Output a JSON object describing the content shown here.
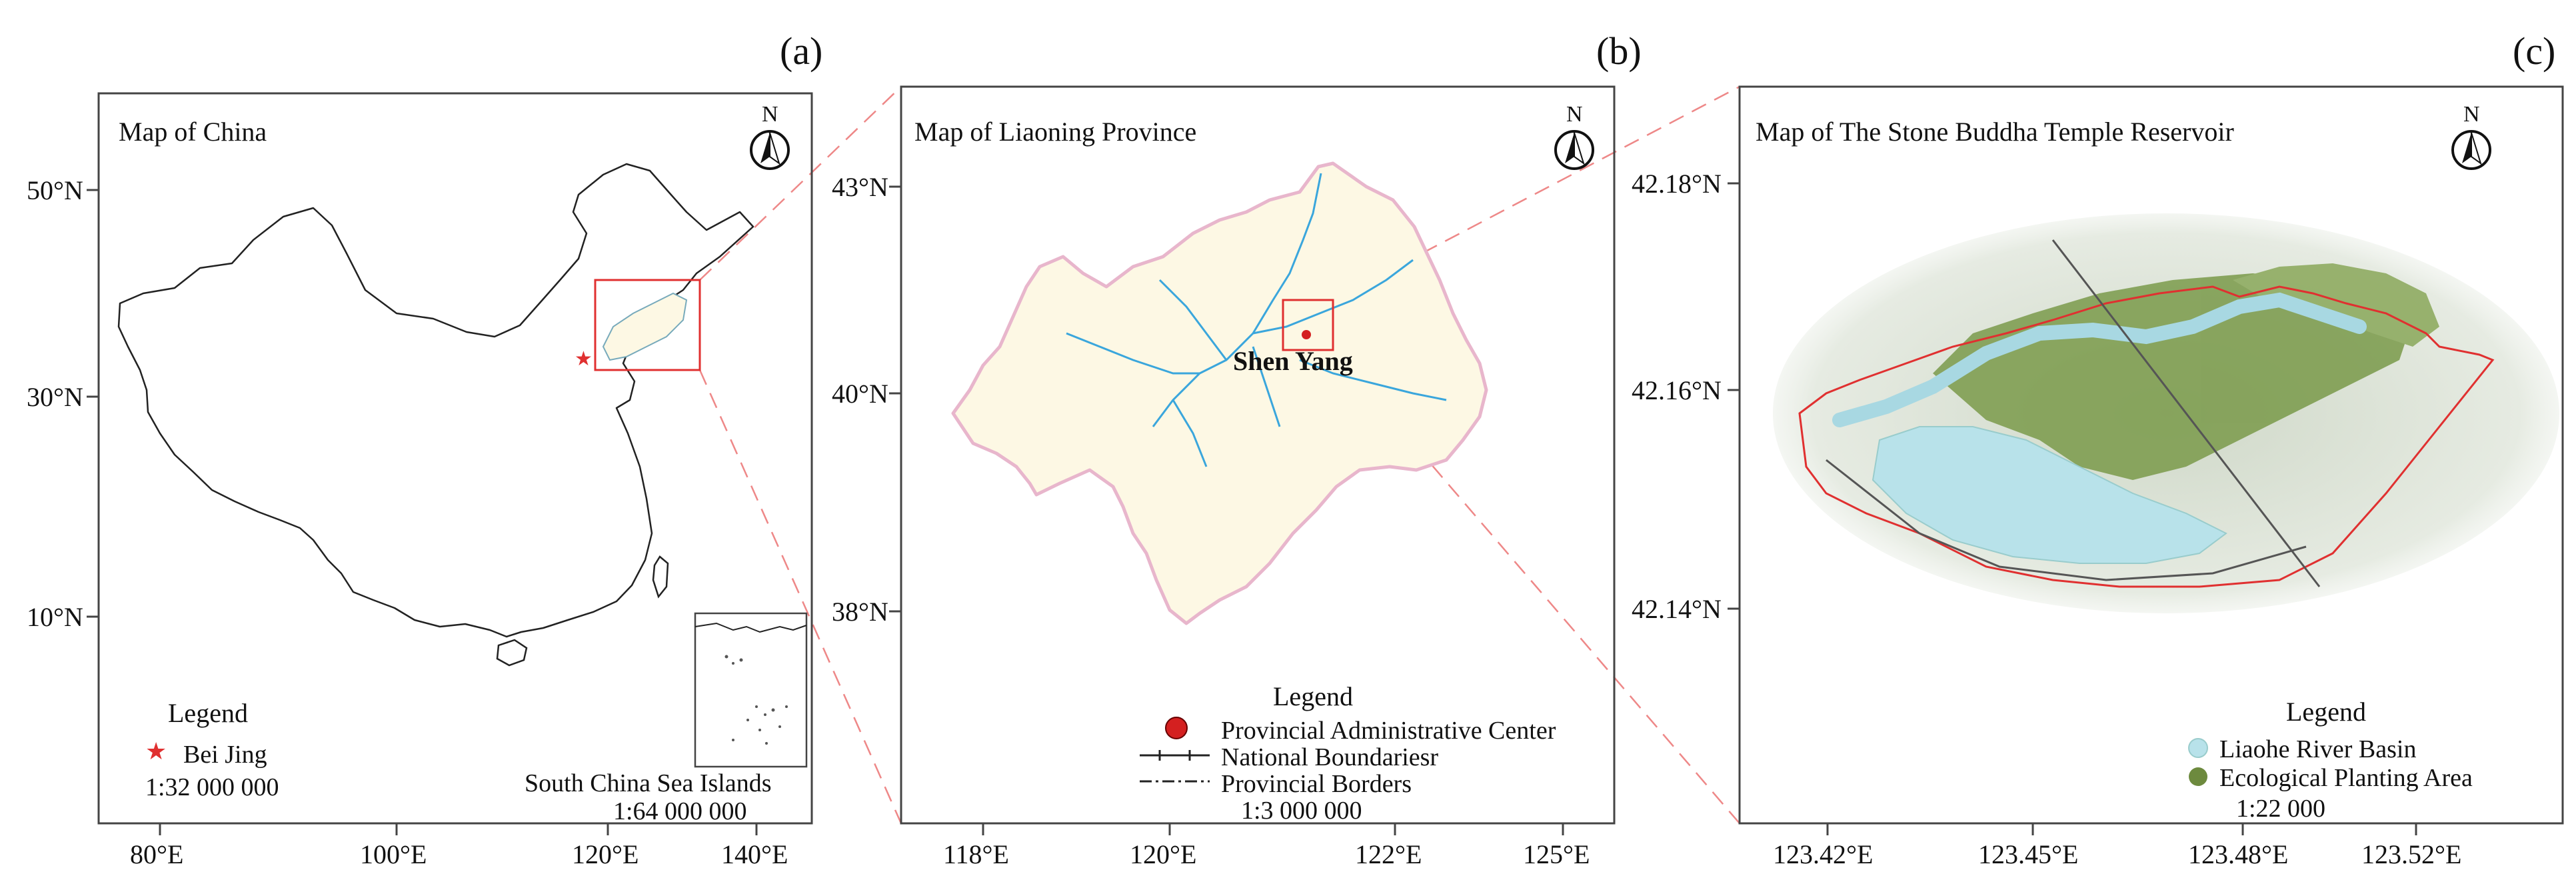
{
  "colors": {
    "frame": "#444444",
    "outline": "#222222",
    "highlight": "#e03030",
    "province_fill": "#fdf8e4",
    "province_edge": "#e8b6cc",
    "river": "#3aa6dc",
    "water": "#b8e2ea",
    "vegetation": "#7a9a4a"
  },
  "panels": [
    {
      "letter": "(a)",
      "title": "Map of China",
      "north": "N",
      "x_ticks": [
        "80°E",
        "100°E",
        "120°E",
        "140°E"
      ],
      "y_ticks": [
        "50°N",
        "30°N",
        "10°N"
      ],
      "legend": {
        "heading": "Legend",
        "items": [
          {
            "label": "Bei Jing",
            "symbol": "star-icon"
          }
        ],
        "scale": "1:32 000 000"
      },
      "inset": {
        "label": "South China Sea Islands",
        "scale": "1:64 000 000"
      }
    },
    {
      "letter": "(b)",
      "title": "Map of Liaoning Province",
      "north": "N",
      "city": "Shen Yang",
      "x_ticks": [
        "118°E",
        "120°E",
        "122°E",
        "125°E"
      ],
      "y_ticks": [
        "43°N",
        "40°N",
        "38°N"
      ],
      "legend": {
        "heading": "Legend",
        "items": [
          {
            "label": "Provincial Administrative Center",
            "symbol": "red-dot-icon"
          },
          {
            "label": "National Boundariesr",
            "symbol": "national-boundary-line-icon"
          },
          {
            "label": "Provincial Borders",
            "symbol": "provincial-border-line-icon"
          }
        ],
        "scale": "1:3 000 000"
      }
    },
    {
      "letter": "(c)",
      "title": "Map of The Stone Buddha Temple Reservoir",
      "north": "N",
      "x_ticks": [
        "123.42°E",
        "123.45°E",
        "123.48°E",
        "123.52°E"
      ],
      "y_ticks": [
        "42.18°N",
        "42.16°N",
        "42.14°N"
      ],
      "legend": {
        "heading": "Legend",
        "items": [
          {
            "label": "Liaohe River Basin",
            "symbol": "light-blue-dot-icon"
          },
          {
            "label": "Ecological Planting Area",
            "symbol": "green-dot-icon"
          }
        ],
        "scale": "1:22 000"
      }
    }
  ]
}
